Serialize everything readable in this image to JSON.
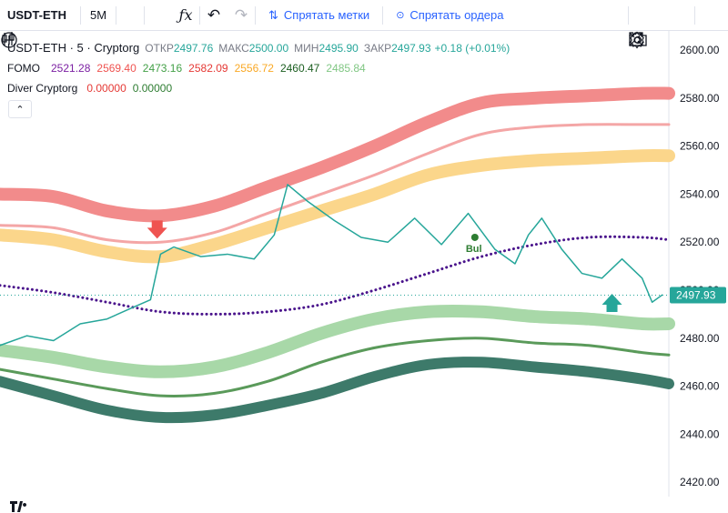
{
  "toolbar": {
    "symbol": "USDT-ETH",
    "interval": "5M",
    "hide_marks_label": "Спрятать метки",
    "hide_orders_label": "Спрятать ордера"
  },
  "legend": {
    "title": "USDT-ETH · 5 · Cryptorg",
    "open_label": "ОТКР",
    "open": "2497.76",
    "high_label": "МАКС",
    "high": "2500.00",
    "low_label": "МИН",
    "low": "2495.90",
    "close_label": "ЗАКР",
    "close": "2497.93",
    "change": "+0.18 (+0.01%)",
    "fomo_name": "FOMO",
    "fomo_values": [
      "2521.28",
      "2569.40",
      "2473.16",
      "2582.09",
      "2556.72",
      "2460.47",
      "2485.84"
    ],
    "fomo_colors": [
      "#7b1fa2",
      "#ef5350",
      "#43a047",
      "#e53935",
      "#f9a825",
      "#1b5e20",
      "#81c784"
    ],
    "diver_name": "Diver Cryptorg",
    "diver_values": [
      "0.00000",
      "0.00000"
    ],
    "diver_colors": [
      "#e53935",
      "#2e7d32"
    ]
  },
  "chart_data": {
    "type": "line",
    "y_ticks": [
      "2600.00",
      "2580.00",
      "2560.00",
      "2540.00",
      "2520.00",
      "2500.00",
      "2480.00",
      "2460.00",
      "2440.00",
      "2420.00"
    ],
    "ylim": [
      2414,
      2608
    ],
    "last_price": "2497.93",
    "annotation": "Bul",
    "series": [
      {
        "name": "FOMO",
        "color": "#f28b8b",
        "width": 14,
        "x": [
          0,
          0.08,
          0.16,
          0.24,
          0.32,
          0.4,
          0.48,
          0.56,
          0.64,
          0.72,
          0.8,
          0.88,
          0.96,
          1.0
        ],
        "y": [
          2540,
          2539,
          2533,
          2531,
          2535,
          2543,
          2551,
          2560,
          2570,
          2578,
          2580,
          2581,
          2582,
          2582
        ]
      },
      {
        "color": "#f4a6a6",
        "width": 3,
        "x": [
          0,
          0.08,
          0.16,
          0.24,
          0.32,
          0.4,
          0.48,
          0.56,
          0.64,
          0.72,
          0.8,
          0.88,
          0.96,
          1.0
        ],
        "y": [
          2527,
          2526,
          2521,
          2520,
          2524,
          2532,
          2540,
          2548,
          2557,
          2565,
          2568,
          2569,
          2569,
          2569
        ]
      },
      {
        "color": "#fbd68b",
        "width": 14,
        "x": [
          0,
          0.08,
          0.16,
          0.24,
          0.32,
          0.4,
          0.48,
          0.56,
          0.64,
          0.72,
          0.8,
          0.88,
          0.96,
          1.0
        ],
        "y": [
          2523,
          2521,
          2516,
          2514,
          2519,
          2526,
          2533,
          2540,
          2548,
          2552,
          2554,
          2555,
          2556,
          2556
        ]
      },
      {
        "color": "#4a148c",
        "width": 3,
        "dotted": true,
        "x": [
          0,
          0.08,
          0.16,
          0.24,
          0.32,
          0.4,
          0.48,
          0.56,
          0.64,
          0.72,
          0.8,
          0.88,
          0.96,
          1.0
        ],
        "y": [
          2502,
          2499,
          2495,
          2491,
          2490,
          2491,
          2494,
          2500,
          2507,
          2514,
          2519,
          2522,
          2522,
          2521
        ]
      },
      {
        "color": "#a8d8a8",
        "width": 14,
        "x": [
          0,
          0.08,
          0.16,
          0.24,
          0.32,
          0.4,
          0.48,
          0.56,
          0.64,
          0.72,
          0.8,
          0.88,
          0.96,
          1.0
        ],
        "y": [
          2475,
          2472,
          2468,
          2466,
          2468,
          2474,
          2482,
          2488,
          2491,
          2491,
          2489,
          2488,
          2486,
          2486
        ]
      },
      {
        "color": "#5a9a5a",
        "width": 3,
        "x": [
          0,
          0.08,
          0.16,
          0.24,
          0.32,
          0.4,
          0.48,
          0.56,
          0.64,
          0.72,
          0.8,
          0.88,
          0.96,
          1.0
        ],
        "y": [
          2467,
          2463,
          2459,
          2456,
          2457,
          2462,
          2470,
          2476,
          2479,
          2480,
          2478,
          2477,
          2474,
          2473
        ]
      },
      {
        "color": "#3d7a6a",
        "width": 12,
        "x": [
          0,
          0.08,
          0.16,
          0.24,
          0.32,
          0.4,
          0.48,
          0.56,
          0.64,
          0.72,
          0.8,
          0.88,
          0.96,
          1.0
        ],
        "y": [
          2462,
          2456,
          2450,
          2447,
          2448,
          2452,
          2457,
          2464,
          2469,
          2470,
          2468,
          2466,
          2463,
          2461
        ]
      },
      {
        "name": "USDT-ETH",
        "color": "#26a69a",
        "width": 1.5,
        "x": [
          0,
          0.04,
          0.08,
          0.12,
          0.16,
          0.2,
          0.225,
          0.24,
          0.26,
          0.3,
          0.34,
          0.38,
          0.41,
          0.43,
          0.46,
          0.5,
          0.54,
          0.58,
          0.62,
          0.66,
          0.7,
          0.74,
          0.77,
          0.79,
          0.81,
          0.84,
          0.87,
          0.9,
          0.93,
          0.96,
          0.975,
          0.99
        ],
        "y": [
          2477,
          2481,
          2479,
          2486,
          2488,
          2493,
          2496,
          2515,
          2518,
          2514,
          2515,
          2513,
          2523,
          2544,
          2537,
          2529,
          2522,
          2520,
          2530,
          2519,
          2532,
          2517,
          2511,
          2523,
          2530,
          2517,
          2507,
          2505,
          2513,
          2505,
          2495,
          2498
        ]
      }
    ],
    "signals": [
      {
        "type": "sell",
        "x": 0.235,
        "y": 2523
      },
      {
        "type": "buy",
        "x": 0.915,
        "y": 2497
      },
      {
        "type": "dot",
        "x": 0.71,
        "y": 2522
      }
    ]
  }
}
